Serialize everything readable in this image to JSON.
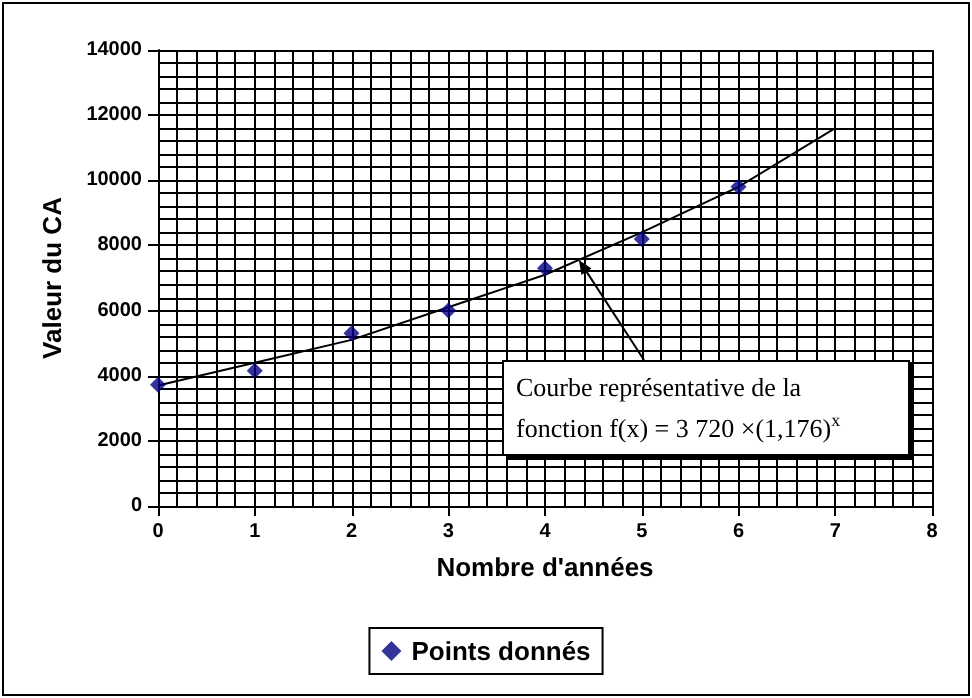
{
  "chart_data": {
    "type": "scatter",
    "xlabel": "Nombre d'années",
    "ylabel": "Valeur du CA",
    "xlim": [
      0,
      8
    ],
    "xticks": [
      0,
      1,
      2,
      3,
      4,
      5,
      6,
      7,
      8
    ],
    "ylim": [
      0,
      14000
    ],
    "yticks": [
      0,
      2000,
      4000,
      6000,
      8000,
      10000,
      12000,
      14000
    ],
    "grid": true,
    "legend": "bottom",
    "marker": "diamond",
    "series": [
      {
        "name": "Points donnés",
        "color": "#000080",
        "x": [
          0,
          1,
          2,
          3,
          4,
          5,
          6
        ],
        "values": [
          3720,
          4150,
          5300,
          6000,
          7300,
          8200,
          9800
        ]
      },
      {
        "type": "line",
        "color": "#000000",
        "line_style": "solid",
        "marker": "none",
        "x": [
          0,
          1,
          2,
          3,
          4,
          5,
          6,
          7
        ],
        "values": [
          3700,
          4400,
          5100,
          6100,
          7100,
          8400,
          9800,
          11600
        ]
      }
    ],
    "annotations": [
      "Courbe représentative de la fonction f(x) = 3 720 ×(1,176)$^{x}$"
    ]
  }
}
